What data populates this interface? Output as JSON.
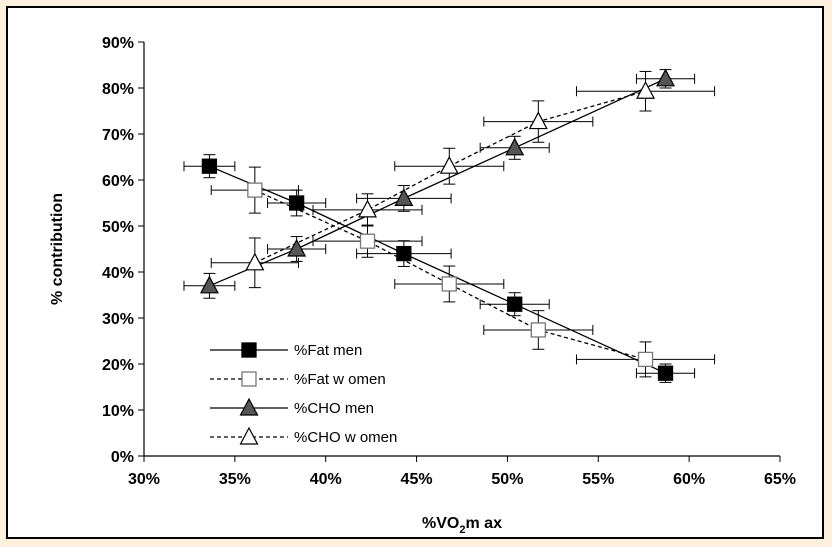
{
  "chart_data": {
    "type": "scatter",
    "xlabel": {
      "main": "%VO",
      "sub": "2",
      "suffix": "m ax"
    },
    "ylabel": "% contribution",
    "xlim": [
      30,
      65
    ],
    "ylim": [
      0,
      90
    ],
    "x_ticks": [
      "30%",
      "35%",
      "40%",
      "45%",
      "50%",
      "55%",
      "60%",
      "65%"
    ],
    "y_ticks": [
      "0%",
      "10%",
      "20%",
      "30%",
      "40%",
      "50%",
      "60%",
      "70%",
      "80%",
      "90%"
    ],
    "grid": false,
    "legend_position": "bottom-left",
    "series": [
      {
        "name": "%Fat men",
        "marker": "square",
        "fill": "#000000",
        "dash": "solid",
        "points": [
          {
            "x": 33.6,
            "y": 63.0,
            "xerr": 1.4,
            "yerr": 2.5
          },
          {
            "x": 38.4,
            "y": 55.0,
            "xerr": 1.6,
            "yerr": 2.8
          },
          {
            "x": 44.3,
            "y": 44.0,
            "xerr": 2.6,
            "yerr": 2.8
          },
          {
            "x": 50.4,
            "y": 33.0,
            "xerr": 1.9,
            "yerr": 2.5
          },
          {
            "x": 58.7,
            "y": 18.0,
            "xerr": 1.6,
            "yerr": 2.0
          }
        ]
      },
      {
        "name": "%Fat w omen",
        "marker": "square",
        "fill": "#FFFFFF",
        "dash": "dashed",
        "points": [
          {
            "x": 36.1,
            "y": 57.8,
            "xerr": 2.4,
            "yerr": 5.0
          },
          {
            "x": 42.3,
            "y": 46.7,
            "xerr": 3.0,
            "yerr": 3.5
          },
          {
            "x": 46.8,
            "y": 37.4,
            "xerr": 3.0,
            "yerr": 3.9
          },
          {
            "x": 51.7,
            "y": 27.4,
            "xerr": 3.0,
            "yerr": 4.2
          },
          {
            "x": 57.6,
            "y": 21.0,
            "xerr": 3.8,
            "yerr": 3.8
          }
        ]
      },
      {
        "name": "%CHO men",
        "marker": "triangle",
        "fill": "#555555",
        "dash": "solid",
        "points": [
          {
            "x": 33.6,
            "y": 37.0,
            "xerr": 1.4,
            "yerr": 2.7
          },
          {
            "x": 38.4,
            "y": 45.0,
            "xerr": 1.6,
            "yerr": 2.7
          },
          {
            "x": 44.3,
            "y": 56.0,
            "xerr": 2.6,
            "yerr": 2.8
          },
          {
            "x": 50.4,
            "y": 67.0,
            "xerr": 1.9,
            "yerr": 2.5
          },
          {
            "x": 58.7,
            "y": 82.0,
            "xerr": 1.6,
            "yerr": 2.0
          }
        ]
      },
      {
        "name": "%CHO w omen",
        "marker": "triangle",
        "fill": "#FFFFFF",
        "dash": "dashed",
        "points": [
          {
            "x": 36.1,
            "y": 42.0,
            "xerr": 2.4,
            "yerr": 5.4
          },
          {
            "x": 42.3,
            "y": 53.5,
            "xerr": 3.0,
            "yerr": 3.5
          },
          {
            "x": 46.8,
            "y": 63.0,
            "xerr": 3.0,
            "yerr": 3.9
          },
          {
            "x": 51.7,
            "y": 72.7,
            "xerr": 3.0,
            "yerr": 4.5
          },
          {
            "x": 57.6,
            "y": 79.3,
            "xerr": 3.8,
            "yerr": 4.3
          }
        ]
      }
    ]
  }
}
